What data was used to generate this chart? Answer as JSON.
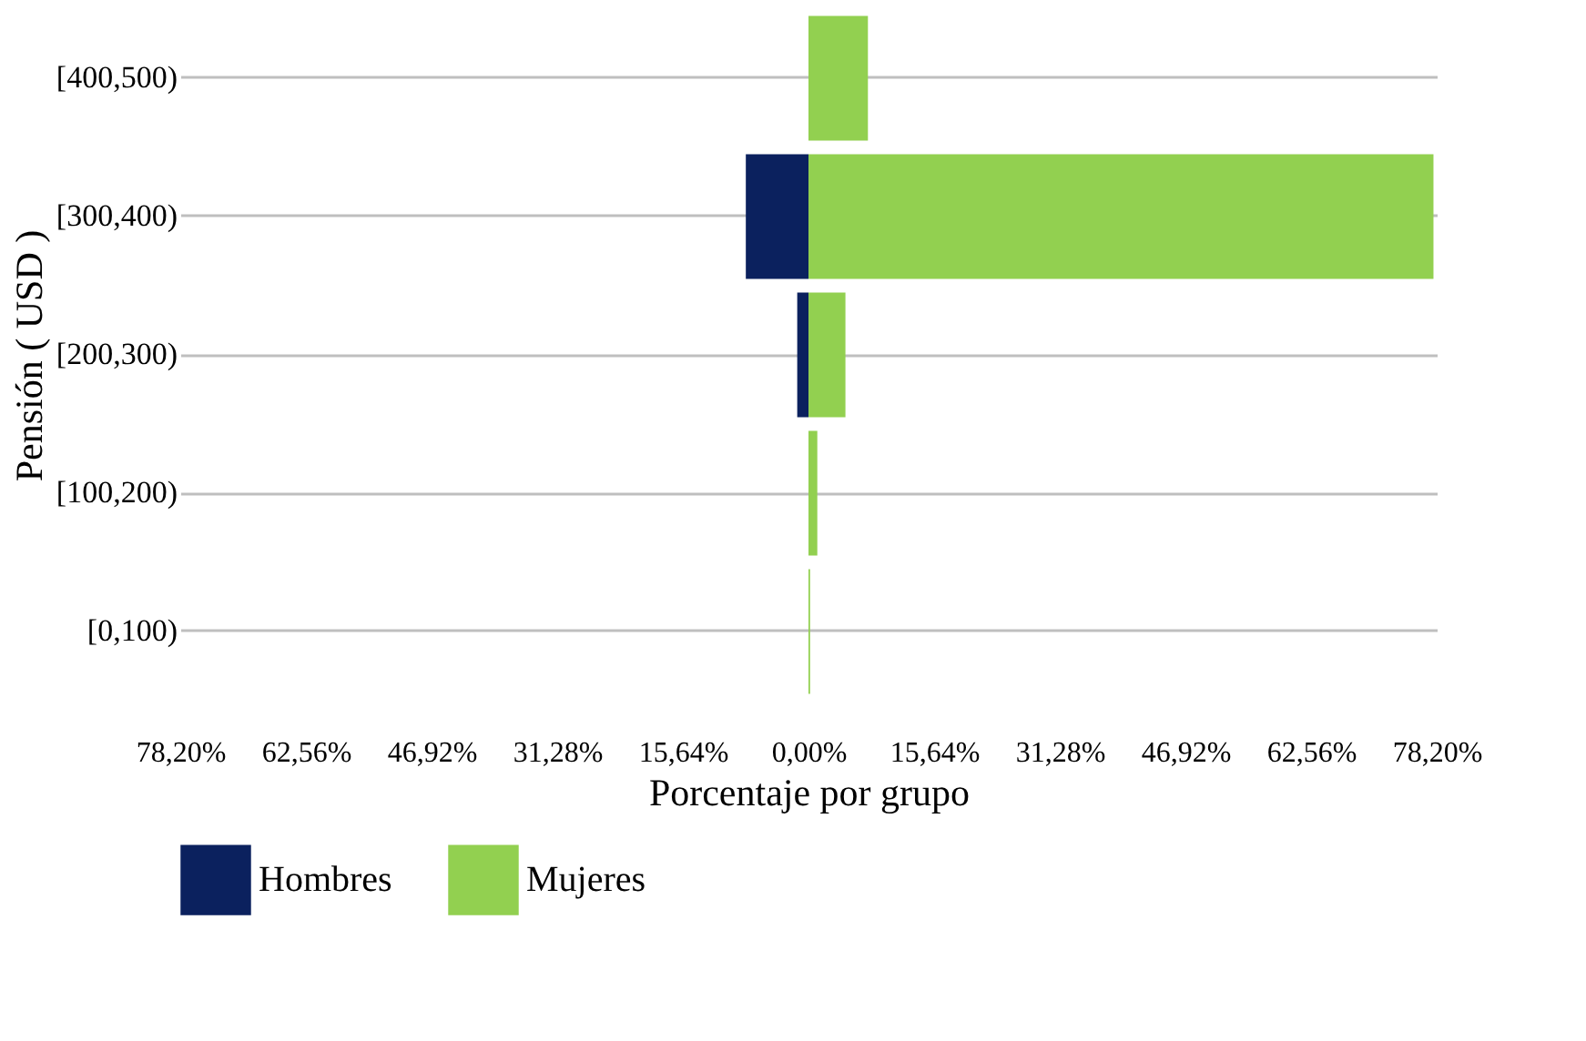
{
  "chart_data": {
    "type": "bar",
    "orientation": "horizontal",
    "xlabel": "Porcentaje por grupo",
    "ylabel": "Pensión ( USD )",
    "categories": [
      "[400,500)",
      "[300,400)",
      "[200,300)",
      "[100,200)",
      "[0,100)"
    ],
    "series": [
      {
        "name": "Hombres",
        "color": "#0b215e",
        "values": [
          0,
          -7.8,
          -1.4,
          0,
          0
        ]
      },
      {
        "name": "Mujeres",
        "color": "#92d050",
        "values": [
          7.4,
          77.8,
          4.6,
          1.1,
          0.2
        ]
      }
    ],
    "xlim": [
      -78.2,
      78.2
    ],
    "xticks": [
      {
        "value": -78.2,
        "label": "78,20%"
      },
      {
        "value": -62.56,
        "label": "62,56%"
      },
      {
        "value": -46.92,
        "label": "46,92%"
      },
      {
        "value": -31.28,
        "label": "31,28%"
      },
      {
        "value": -15.64,
        "label": "15,64%"
      },
      {
        "value": 0,
        "label": "0,00%"
      },
      {
        "value": 15.64,
        "label": "15,64%"
      },
      {
        "value": 31.28,
        "label": "31,28%"
      },
      {
        "value": 46.92,
        "label": "46,92%"
      },
      {
        "value": 62.56,
        "label": "62,56%"
      },
      {
        "value": 78.2,
        "label": "78,20%"
      }
    ],
    "grid": "y",
    "legend": "bottom"
  }
}
